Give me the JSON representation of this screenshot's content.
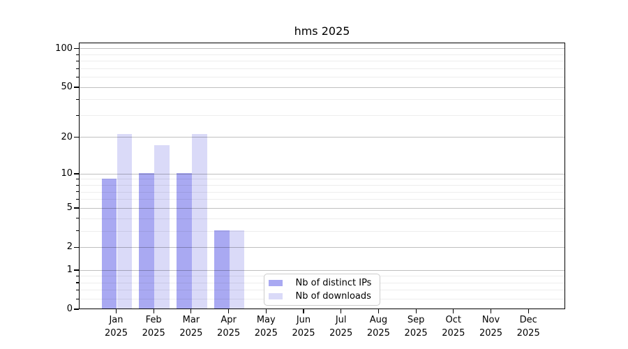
{
  "title": "hms 2025",
  "chart_data": {
    "type": "bar",
    "title": "hms 2025",
    "x_months": [
      "Jan",
      "Feb",
      "Mar",
      "Apr",
      "May",
      "Jun",
      "Jul",
      "Aug",
      "Sep",
      "Oct",
      "Nov",
      "Dec"
    ],
    "x_year": "2025",
    "series": [
      {
        "name": "Nb of distinct IPs",
        "color": "#a9a9f2",
        "values": [
          9,
          10,
          10,
          3,
          0,
          0,
          0,
          0,
          0,
          0,
          0,
          0
        ]
      },
      {
        "name": "Nb of downloads",
        "color": "#dadaf8",
        "values": [
          21,
          17,
          21,
          3,
          0,
          0,
          0,
          0,
          0,
          0,
          0,
          0
        ]
      }
    ],
    "y_scale": "log1p",
    "ylim": [
      0,
      111.5
    ],
    "y_major_ticks": [
      0,
      1,
      2,
      5,
      10,
      20,
      50,
      100
    ],
    "y_minor_ticks": [
      0.2,
      0.4,
      0.6,
      0.8,
      3,
      4,
      6,
      7,
      8,
      9,
      30,
      40,
      60,
      70,
      80,
      90
    ],
    "grid": true,
    "legend_position": "lower-center"
  },
  "colors": {
    "major_grid": "rgba(0,0,0,0.25)",
    "minor_grid": "rgba(0,0,0,0.07)",
    "spine": "#000000",
    "background": "#ffffff"
  }
}
